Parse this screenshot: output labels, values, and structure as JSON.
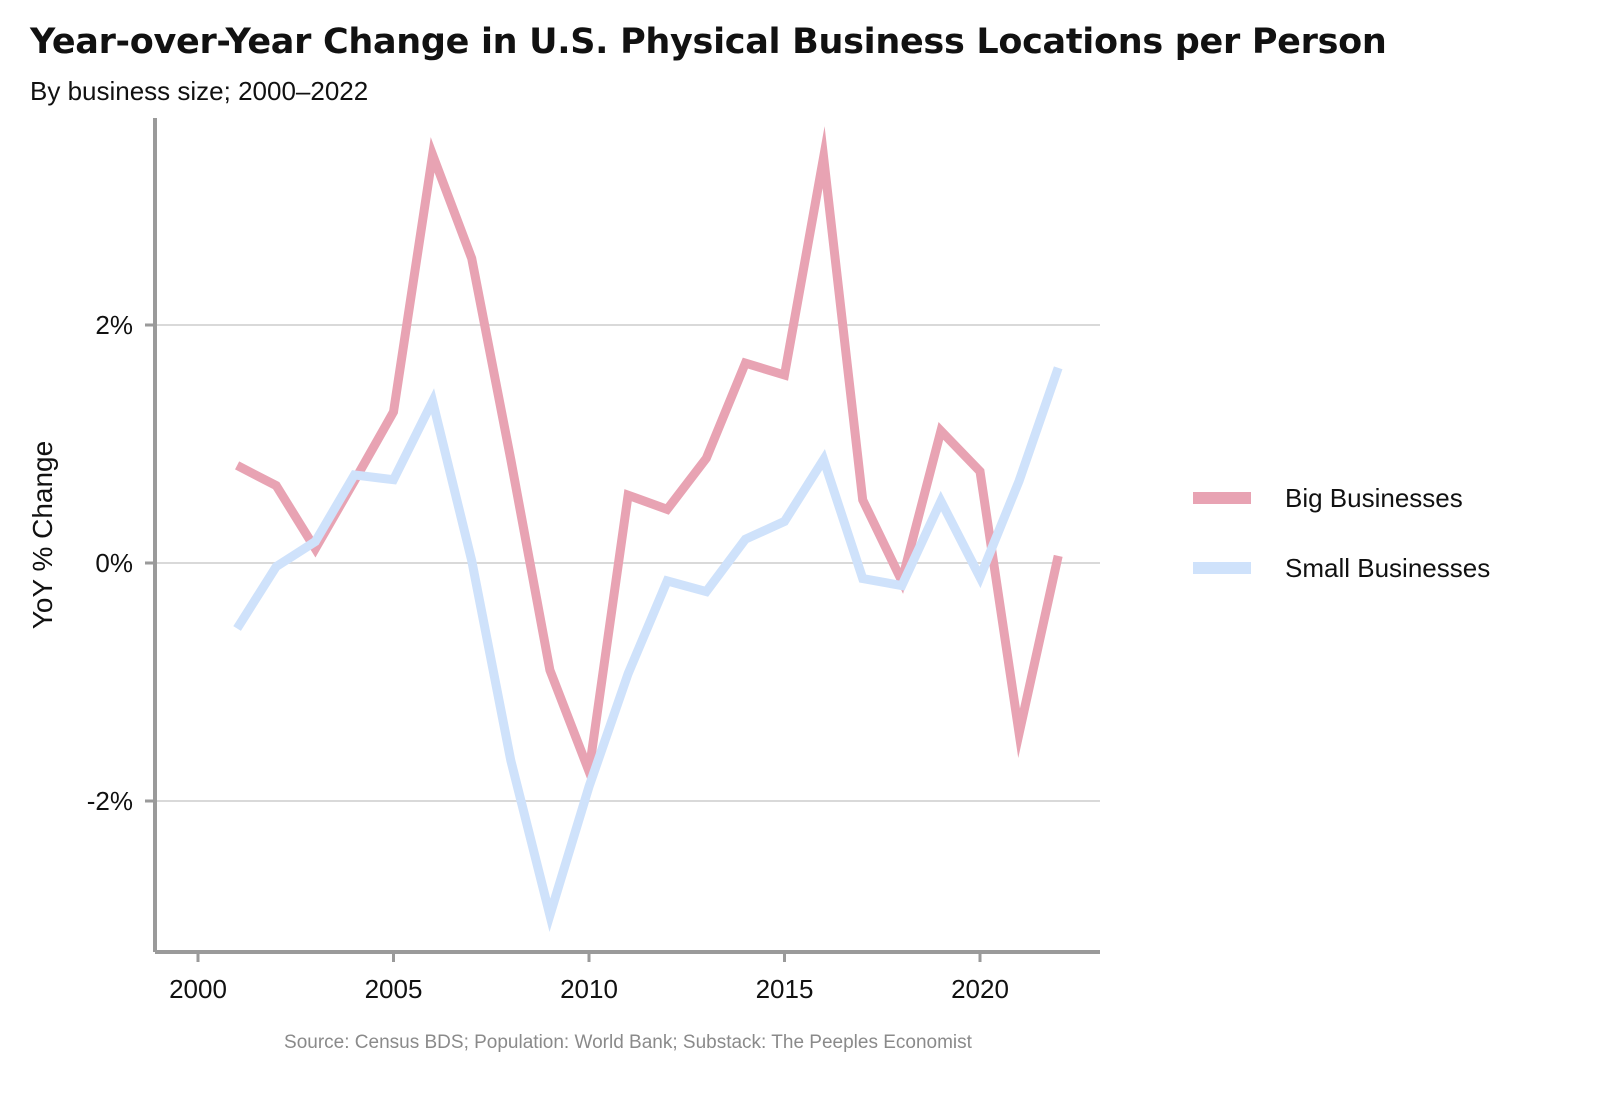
{
  "header": {
    "title": "Year-over-Year Change in U.S. Physical Business Locations per Person",
    "subtitle": "By business size; 2000–2022"
  },
  "footer": {
    "source": "Source: Census BDS; Population: World Bank; Substack: The Peeples Economist"
  },
  "chart_data": {
    "type": "line",
    "title": "Year-over-Year Change in U.S. Physical Business Locations per Person",
    "subtitle": "By business size; 2000–2022",
    "xlabel": "",
    "ylabel": "YoY % Change",
    "xlim": [
      1999,
      2023
    ],
    "ylim": [
      -3.25,
      3.75
    ],
    "x_ticks": [
      2000,
      2005,
      2010,
      2015,
      2020
    ],
    "x_tick_labels": [
      "2000",
      "2005",
      "2010",
      "2015",
      "2020"
    ],
    "y_ticks": [
      -2,
      0,
      2
    ],
    "y_tick_labels": [
      "-2%",
      "0%",
      "2%"
    ],
    "grid": "horizontal",
    "legend_position": "right",
    "x": [
      2001,
      2002,
      2003,
      2004,
      2005,
      2006,
      2007,
      2008,
      2009,
      2010,
      2011,
      2012,
      2013,
      2014,
      2015,
      2016,
      2017,
      2018,
      2019,
      2020,
      2021,
      2022
    ],
    "series": [
      {
        "name": "Big Businesses",
        "color": "#e8a3b3",
        "values": [
          0.82,
          0.65,
          0.12,
          0.69,
          1.27,
          3.43,
          2.56,
          0.87,
          -0.9,
          -1.75,
          0.57,
          0.45,
          0.88,
          1.68,
          1.58,
          3.41,
          0.53,
          -0.15,
          1.11,
          0.77,
          -1.43,
          0.06
        ]
      },
      {
        "name": "Small Businesses",
        "color": "#cfe2fb",
        "values": [
          -0.55,
          -0.03,
          0.18,
          0.74,
          0.7,
          1.36,
          0.02,
          -1.66,
          -2.96,
          -1.88,
          -0.93,
          -0.15,
          -0.24,
          0.2,
          0.35,
          0.87,
          -0.13,
          -0.19,
          0.52,
          -0.12,
          0.69,
          1.64
        ]
      }
    ]
  }
}
